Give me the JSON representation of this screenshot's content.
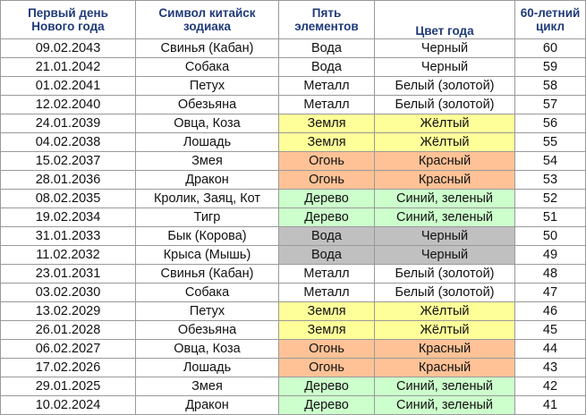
{
  "table": {
    "headers": [
      "Первый день\nНового года",
      "Символ китайск\nзодиака",
      "Пять\nэлементов",
      "Цвет года",
      "60-летний\nцикл"
    ],
    "colors": {
      "white": "#ffffff",
      "yellow": "#ffff99",
      "orange": "#ffc296",
      "green": "#ccffcc",
      "gray": "#c0c0c0",
      "header_text": "#1f3a7a"
    },
    "rows": [
      {
        "date": "09.02.2043",
        "zodiac": "Свинья (Кабан)",
        "element": "Вода",
        "color": "Черный",
        "cycle": "60",
        "fill": "white"
      },
      {
        "date": "21.01.2042",
        "zodiac": "Собака",
        "element": "Вода",
        "color": "Черный",
        "cycle": "59",
        "fill": "white"
      },
      {
        "date": "01.02.2041",
        "zodiac": "Петух",
        "element": "Металл",
        "color": "Белый (золотой)",
        "cycle": "58",
        "fill": "white"
      },
      {
        "date": "12.02.2040",
        "zodiac": "Обезьяна",
        "element": "Металл",
        "color": "Белый (золотой)",
        "cycle": "57",
        "fill": "white"
      },
      {
        "date": "24.01.2039",
        "zodiac": "Овца, Коза",
        "element": "Земля",
        "color": "Жёлтый",
        "cycle": "56",
        "fill": "yellow"
      },
      {
        "date": "04.02.2038",
        "zodiac": "Лошадь",
        "element": "Земля",
        "color": "Жёлтый",
        "cycle": "55",
        "fill": "yellow"
      },
      {
        "date": "15.02.2037",
        "zodiac": "Змея",
        "element": "Огонь",
        "color": "Красный",
        "cycle": "54",
        "fill": "orange"
      },
      {
        "date": "28.01.2036",
        "zodiac": "Дракон",
        "element": "Огонь",
        "color": "Красный",
        "cycle": "53",
        "fill": "orange"
      },
      {
        "date": "08.02.2035",
        "zodiac": "Кролик, Заяц, Кот",
        "element": "Дерево",
        "color": "Синий, зеленый",
        "cycle": "52",
        "fill": "green"
      },
      {
        "date": "19.02.2034",
        "zodiac": "Тигр",
        "element": "Дерево",
        "color": "Синий, зеленый",
        "cycle": "51",
        "fill": "green"
      },
      {
        "date": "31.01.2033",
        "zodiac": "Бык (Корова)",
        "element": "Вода",
        "color": "Черный",
        "cycle": "50",
        "fill": "gray"
      },
      {
        "date": "11.02.2032",
        "zodiac": "Крыса (Мышь)",
        "element": "Вода",
        "color": "Черный",
        "cycle": "49",
        "fill": "gray"
      },
      {
        "date": "23.01.2031",
        "zodiac": "Свинья (Кабан)",
        "element": "Металл",
        "color": "Белый (золотой)",
        "cycle": "48",
        "fill": "white"
      },
      {
        "date": "03.02.2030",
        "zodiac": "Собака",
        "element": "Металл",
        "color": "Белый (золотой)",
        "cycle": "47",
        "fill": "white"
      },
      {
        "date": "13.02.2029",
        "zodiac": "Петух",
        "element": "Земля",
        "color": "Жёлтый",
        "cycle": "46",
        "fill": "yellow"
      },
      {
        "date": "26.01.2028",
        "zodiac": "Обезьяна",
        "element": "Земля",
        "color": "Жёлтый",
        "cycle": "45",
        "fill": "yellow"
      },
      {
        "date": "06.02.2027",
        "zodiac": "Овца, Коза",
        "element": "Огонь",
        "color": "Красный",
        "cycle": "44",
        "fill": "orange"
      },
      {
        "date": "17.02.2026",
        "zodiac": "Лошадь",
        "element": "Огонь",
        "color": "Красный",
        "cycle": "43",
        "fill": "orange"
      },
      {
        "date": "29.01.2025",
        "zodiac": "Змея",
        "element": "Дерево",
        "color": "Синий, зеленый",
        "cycle": "42",
        "fill": "green"
      },
      {
        "date": "10.02.2024",
        "zodiac": "Дракон",
        "element": "Дерево",
        "color": "Синий, зеленый",
        "cycle": "41",
        "fill": "green"
      }
    ]
  }
}
